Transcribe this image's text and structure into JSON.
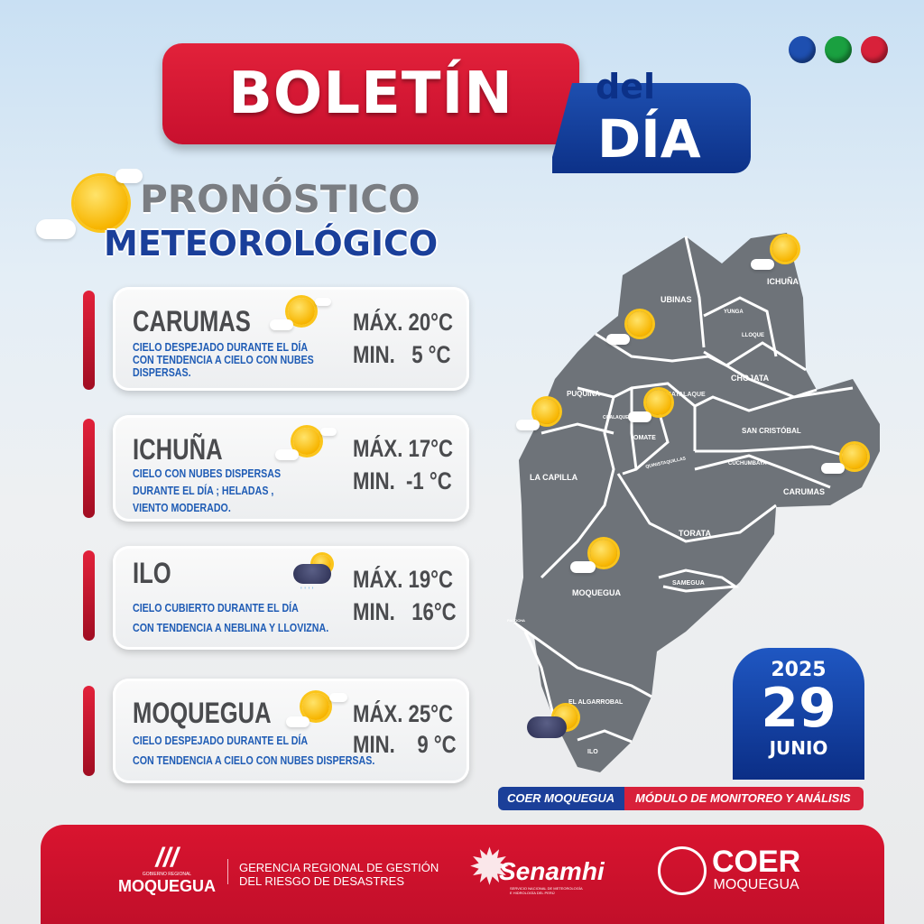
{
  "header": {
    "title": "BOLETÍN",
    "del": "del",
    "dia": "DÍA"
  },
  "dots": [
    "#1e4fb0",
    "#1aa040",
    "#d8213a"
  ],
  "section": {
    "line1": "PRONÓSTICO",
    "line2": "METEOROLÓGICO"
  },
  "forecasts": [
    {
      "city": "CARUMAS",
      "desc": [
        "CIELO DESPEJADO DURANTE EL DÍA",
        "CON TENDENCIA A CIELO CON NUBES",
        "DISPERSAS."
      ],
      "max": "MÁX. 20°C",
      "min": "MIN.   5 °C",
      "icon": "sun-cloud-icon"
    },
    {
      "city": "ICHUÑA",
      "desc": [
        "CIELO CON NUBES DISPERSAS",
        "DURANTE EL DÍA ; HELADAS ,",
        "VIENTO MODERADO."
      ],
      "max": "MÁX. 17°C",
      "min": "MIN.  -1 °C",
      "icon": "sun-cloud-icon"
    },
    {
      "city": "ILO",
      "desc": [
        "CIELO CUBIERTO DURANTE EL DÍA",
        "CON TENDENCIA A NEBLINA Y LLOVIZNA."
      ],
      "max": "MÁX. 19°C",
      "min": "MIN.   16°C",
      "icon": "rain-cloud-icon"
    },
    {
      "city": "MOQUEGUA",
      "desc": [
        "CIELO DESPEJADO DURANTE EL DÍA",
        "CON TENDENCIA A CIELO CON NUBES DISPERSAS."
      ],
      "max": "MÁX. 25°C",
      "min": "MIN.    9 °C",
      "icon": "sun-cloud-icon"
    }
  ],
  "map": {
    "labels": [
      "ICHUÑA",
      "UBINAS",
      "YUNGA",
      "LLOQUE",
      "CHOJATA",
      "PUQUINA",
      "COALAQUE",
      "MATALAQUE",
      "OMATE",
      "QUINISTAQUILLAS",
      "SAN CRISTÓBAL",
      "CUCHUMBAYA",
      "LA CAPILLA",
      "CARUMAS",
      "TORATA",
      "MOQUEGUA",
      "SAMEGUA",
      "PACOCHA",
      "EL ALGARROBAL",
      "ILO"
    ]
  },
  "date": {
    "year": "2025",
    "day": "29",
    "month": "JUNIO"
  },
  "banner": {
    "left": "COER MOQUEGUA",
    "right": "MÓDULO DE MONITOREO Y ANÁLISIS"
  },
  "footer": {
    "gob_small": "GOBIERNO REGIONAL",
    "gob": "MOQUEGUA",
    "gerencia1": "GERENCIA REGIONAL DE GESTIÓN",
    "gerencia2": "DEL RIESGO DE DESASTRES",
    "senamhi": "Senamhi",
    "senamhi_sub1": "SERVICIO NACIONAL DE METEOROLOGÍA",
    "senamhi_sub2": "E HIDROLOGÍA DEL PERÚ",
    "coer": "COER",
    "coer_sub": "MOQUEGUA"
  }
}
